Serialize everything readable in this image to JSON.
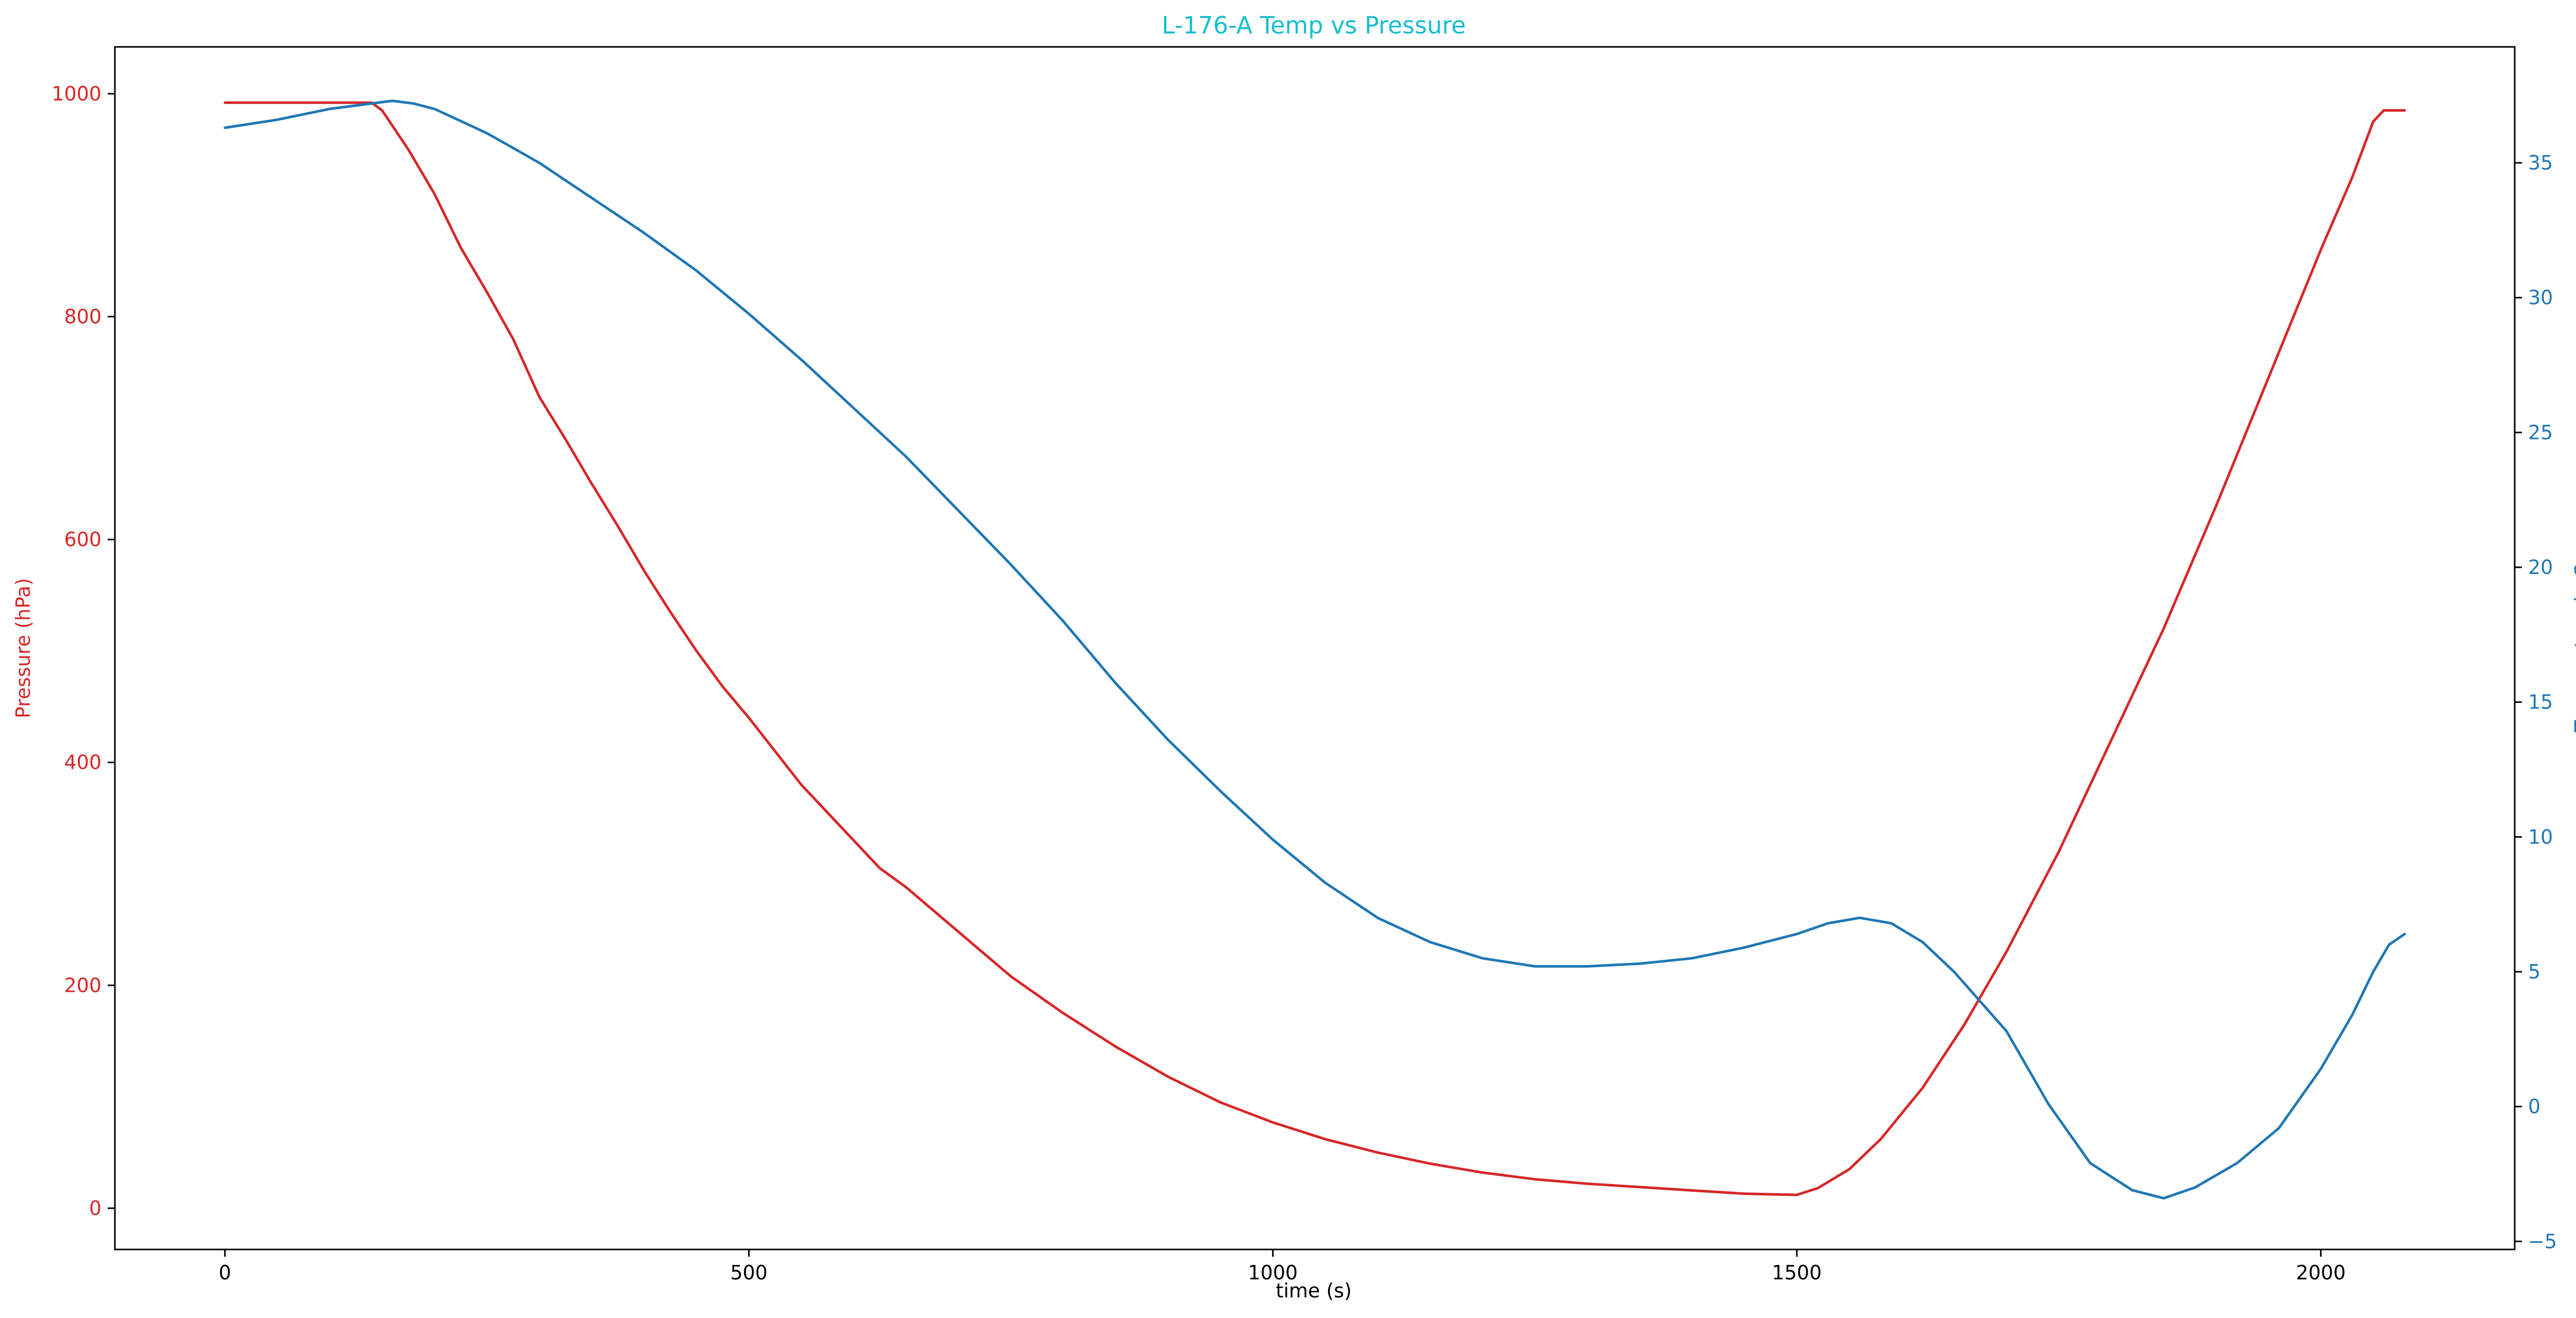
{
  "chart_data": {
    "type": "line",
    "title": "L-176-A Temp vs Pressure",
    "xlabel": "time (s)",
    "ylabel_left": "Pressure (hPa)",
    "ylabel_right": "Temperature in C",
    "xlim": [
      -105,
      2185
    ],
    "ylim_left": [
      -37,
      1042
    ],
    "ylim_right": [
      -5.3,
      39.3
    ],
    "x_ticks": [
      0,
      500,
      1000,
      1500,
      2000
    ],
    "x_tick_labels": [
      "0",
      "500",
      "1000",
      "1500",
      "2000"
    ],
    "y_left_ticks": [
      0,
      200,
      400,
      600,
      800,
      1000
    ],
    "y_left_tick_labels": [
      "0",
      "200",
      "400",
      "600",
      "800",
      "1000"
    ],
    "y_right_ticks": [
      -5,
      0,
      5,
      10,
      15,
      20,
      25,
      30,
      35
    ],
    "y_right_tick_labels": [
      "−5",
      "0",
      "5",
      "10",
      "15",
      "20",
      "25",
      "30",
      "35"
    ],
    "grid": false,
    "colors": {
      "title": "#17becf",
      "pressure": "#d62728",
      "temperature": "#1f77b4",
      "axes": "#000000"
    },
    "series": [
      {
        "axis": "left",
        "x": [
          0,
          50,
          100,
          140,
          150,
          175,
          200,
          225,
          250,
          275,
          300,
          325,
          350,
          375,
          400,
          425,
          450,
          475,
          500,
          525,
          550,
          575,
          600,
          625,
          650,
          700,
          750,
          800,
          850,
          900,
          950,
          1000,
          1050,
          1100,
          1150,
          1200,
          1250,
          1300,
          1350,
          1400,
          1450,
          1500,
          1520,
          1550,
          1580,
          1620,
          1660,
          1700,
          1750,
          1800,
          1850,
          1900,
          1950,
          2000,
          2030,
          2050,
          2060,
          2070,
          2080
        ],
        "y": [
          992,
          992,
          992,
          992,
          985,
          950,
          910,
          862,
          822,
          780,
          728,
          690,
          650,
          612,
          572,
          535,
          500,
          468,
          440,
          410,
          380,
          355,
          330,
          305,
          288,
          248,
          208,
          175,
          145,
          118,
          95,
          77,
          62,
          50,
          40,
          32,
          26,
          22,
          19,
          16,
          13,
          12,
          18,
          35,
          62,
          108,
          165,
          230,
          320,
          420,
          520,
          630,
          745,
          860,
          925,
          975,
          985,
          985,
          985
        ]
      },
      {
        "axis": "right",
        "x": [
          0,
          50,
          100,
          140,
          160,
          180,
          200,
          250,
          300,
          350,
          400,
          450,
          500,
          550,
          600,
          650,
          700,
          750,
          800,
          850,
          900,
          950,
          1000,
          1050,
          1100,
          1150,
          1200,
          1250,
          1300,
          1350,
          1400,
          1450,
          1500,
          1530,
          1560,
          1590,
          1620,
          1650,
          1700,
          1740,
          1780,
          1820,
          1850,
          1880,
          1920,
          1960,
          2000,
          2030,
          2050,
          2065,
          2080
        ],
        "y": [
          36.3,
          36.6,
          37.0,
          37.2,
          37.3,
          37.2,
          37.0,
          36.1,
          35.0,
          33.7,
          32.4,
          31.0,
          29.4,
          27.7,
          25.9,
          24.1,
          22.1,
          20.1,
          18.0,
          15.7,
          13.6,
          11.7,
          9.9,
          8.3,
          7.0,
          6.1,
          5.5,
          5.2,
          5.2,
          5.3,
          5.5,
          5.9,
          6.4,
          6.8,
          7.0,
          6.8,
          6.1,
          5.0,
          2.8,
          0.1,
          -2.1,
          -3.1,
          -3.4,
          -3.0,
          -2.1,
          -0.8,
          1.4,
          3.4,
          5.0,
          6.0,
          6.4
        ]
      }
    ]
  }
}
